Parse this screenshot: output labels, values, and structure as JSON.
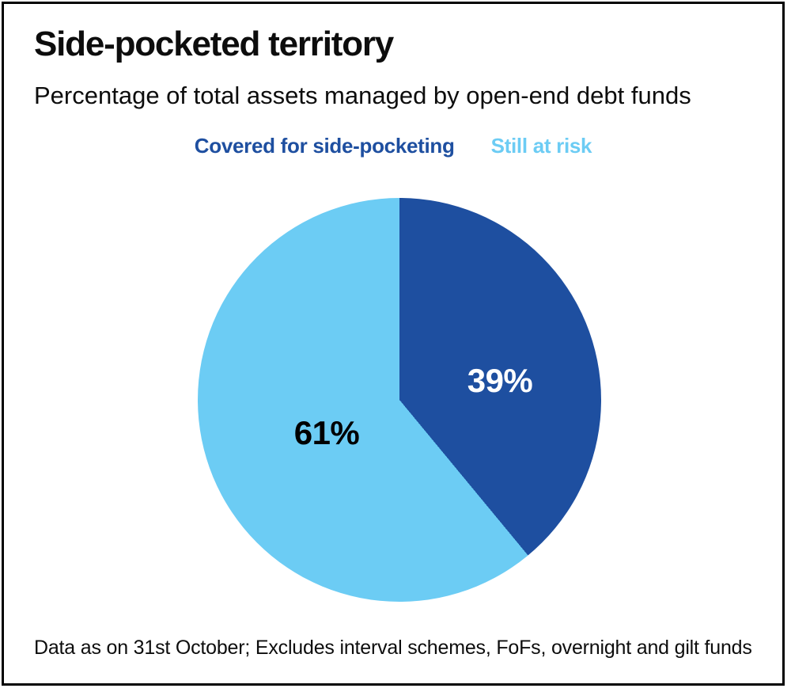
{
  "colors": {
    "dark_blue": "#1e4fa0",
    "light_blue": "#6cccf4",
    "frame_border": "#010101",
    "background": "#ffffff",
    "title_text": "#0d0d0d"
  },
  "chart_data": {
    "type": "pie",
    "title": "Side-pocketed territory",
    "subtitle": "Percentage of total assets managed by open-end debt funds",
    "slices": [
      {
        "label": "Covered for side-pocketing",
        "value": 39,
        "display": "39%",
        "color": "#1e4fa0",
        "label_color": "#ffffff"
      },
      {
        "label": "Still at risk",
        "value": 61,
        "display": "61%",
        "color": "#6cccf4",
        "label_color": "#000000"
      }
    ],
    "start_angle_deg": 0,
    "direction": "clockwise",
    "legend_position": "top-center",
    "footnote": "Data as on 31st October; Excludes interval schemes, FoFs, overnight and gilt funds"
  }
}
